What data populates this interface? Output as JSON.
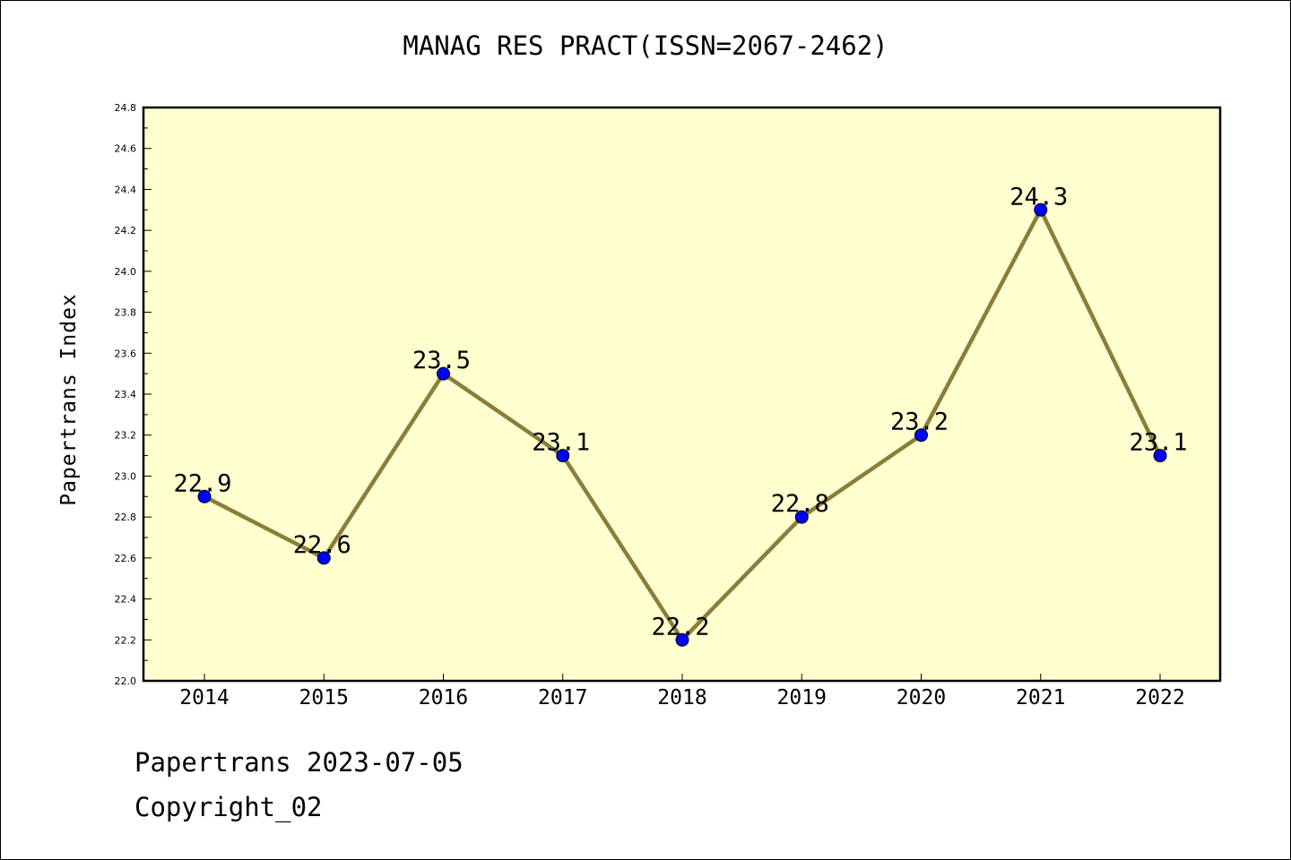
{
  "chart_data": {
    "type": "line",
    "title": "MANAG RES PRACT(ISSN=2067-2462)",
    "xlabel": "",
    "ylabel": "Papertrans Index",
    "categories": [
      "2014",
      "2015",
      "2016",
      "2017",
      "2018",
      "2019",
      "2020",
      "2021",
      "2022"
    ],
    "series": [
      {
        "values": [
          22.9,
          22.6,
          23.5,
          23.1,
          22.2,
          22.8,
          23.2,
          24.3,
          23.1
        ],
        "data_labels": [
          "22.9",
          "22.6",
          "23.5",
          "23.1",
          "22.2",
          "22.8",
          "23.2",
          "24.3",
          "23.1"
        ]
      }
    ],
    "ylim": [
      22.0,
      24.8
    ],
    "yticks": [
      "22.0",
      "22.2",
      "22.4",
      "22.6",
      "22.8",
      "23.0",
      "23.2",
      "23.4",
      "23.6",
      "23.8",
      "24.0",
      "24.2",
      "24.4",
      "24.6",
      "24.8"
    ],
    "grid": false,
    "legend": "none",
    "colors": {
      "plot_background": "#ffffd0",
      "line": "#8b7d3a",
      "marker": "#0000ff"
    }
  },
  "footer": {
    "date_text": "Papertrans 2023-07-05",
    "copyright_text": "Copyright_02"
  }
}
